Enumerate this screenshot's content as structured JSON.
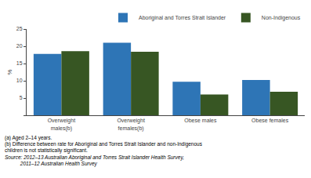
{
  "chart_data": {
    "type": "bar",
    "categories": [
      "Overweight\nmales(b)",
      "Overweight\nfemales(b)",
      "Obese males",
      "Obese females"
    ],
    "series": [
      {
        "name": "Aboriginal and Torres Strait Islander",
        "color": "#2E75B6",
        "values": [
          17.8,
          21.0,
          9.7,
          10.2
        ]
      },
      {
        "name": "Non-Indigenous",
        "color": "#375623",
        "values": [
          18.6,
          18.4,
          6.0,
          6.8
        ]
      }
    ],
    "ylabel": "%",
    "ylim": [
      0,
      25
    ],
    "yticks": [
      {
        "value": 0,
        "label": ""
      },
      5,
      10,
      15,
      20,
      25
    ],
    "grid": false,
    "legend": "top right",
    "annotations": [
      "(a) Aged 2–14 years.",
      "(b) Difference between rate for Aboriginal and Torres Strait Islander and non-Indigenous\nchildren is not statistically significant.",
      "Source: 2012–13 Australian Aboriginal and Torres Strait Islander Health Survey,\n           2011–12 Australian Health Survey"
    ]
  }
}
